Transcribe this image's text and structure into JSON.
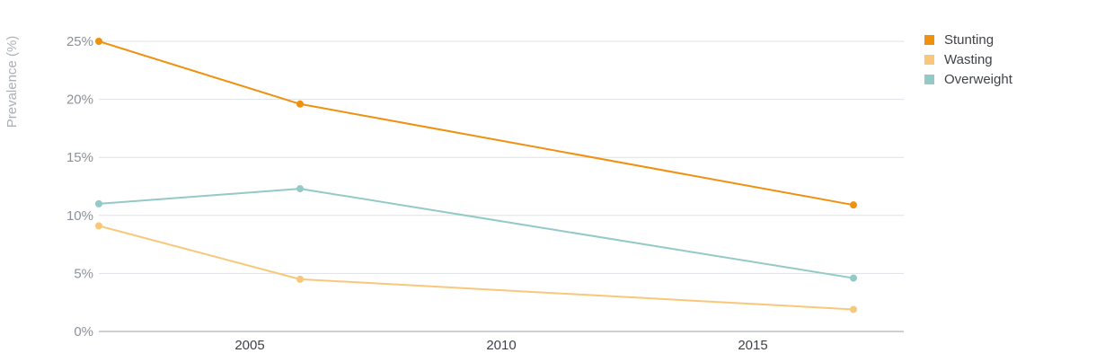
{
  "chart_data": {
    "type": "line",
    "ylabel": "Prevalence (%)",
    "xlabel": "",
    "title": "",
    "xlim": [
      2002,
      2018
    ],
    "ylim": [
      0,
      25
    ],
    "x_ticks": [
      2005,
      2010,
      2015
    ],
    "y_ticks": [
      0,
      5,
      10,
      15,
      20,
      25
    ],
    "y_tick_labels": [
      "0%",
      "5%",
      "10%",
      "15%",
      "20%",
      "25%"
    ],
    "x_tick_labels": [
      "2005",
      "2010",
      "2015"
    ],
    "grid": true,
    "legend_position": "top-right",
    "series": [
      {
        "name": "Stunting",
        "color": "#f0900f",
        "points": [
          {
            "x": 2002,
            "y": 25.0
          },
          {
            "x": 2006,
            "y": 19.6
          },
          {
            "x": 2017,
            "y": 10.9
          }
        ]
      },
      {
        "name": "Wasting",
        "color": "#f9c77a",
        "points": [
          {
            "x": 2002,
            "y": 9.1
          },
          {
            "x": 2006,
            "y": 4.5
          },
          {
            "x": 2017,
            "y": 1.9
          }
        ]
      },
      {
        "name": "Overweight",
        "color": "#93c9c6",
        "points": [
          {
            "x": 2002,
            "y": 11.0
          },
          {
            "x": 2006,
            "y": 12.3
          },
          {
            "x": 2017,
            "y": 4.6
          }
        ]
      }
    ]
  }
}
